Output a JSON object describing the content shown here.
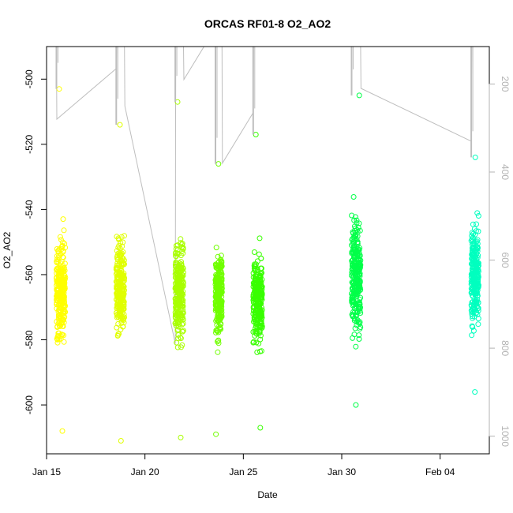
{
  "chart_data": {
    "type": "scatter",
    "title": "ORCAS RF01-8 O2_AO2",
    "xlabel": "Date",
    "ylabel": "O2_AO2",
    "xlim": [
      "2016-01-15T00:00",
      "2016-02-06T12:00"
    ],
    "ylim": [
      -615,
      -490
    ],
    "y2lim": [
      1040,
      115
    ],
    "x_ticks": [
      {
        "date": "2016-01-15",
        "label": "Jan 15"
      },
      {
        "date": "2016-01-20",
        "label": "Jan 20"
      },
      {
        "date": "2016-01-25",
        "label": "Jan 25"
      },
      {
        "date": "2016-01-30",
        "label": "Jan 30"
      },
      {
        "date": "2016-02-04",
        "label": "Feb 04"
      }
    ],
    "y_ticks": [
      -500,
      -520,
      -540,
      -560,
      -580,
      -600
    ],
    "y2_ticks": [
      200,
      400,
      600,
      800,
      1000
    ],
    "colors": {
      "line": "#bebebe",
      "axis": "#000000",
      "right_axis": "#b3b3b3"
    },
    "flights": [
      {
        "t0": "2016-01-15T12:00",
        "t1": "2016-01-15T23:00",
        "ymin": -608,
        "ymax": -503,
        "ymean": -565,
        "ysd": 12,
        "color": "#ffff00"
      },
      {
        "t0": "2016-01-18T13:00",
        "t1": "2016-01-18T23:00",
        "ymin": -611,
        "ymax": -514,
        "ymean": -565,
        "ysd": 11,
        "color": "#e0ff00"
      },
      {
        "t0": "2016-01-21T13:00",
        "t1": "2016-01-21T23:00",
        "ymin": -610,
        "ymax": -507,
        "ymean": -565,
        "ysd": 12,
        "color": "#a8ff00"
      },
      {
        "t0": "2016-01-23T14:00",
        "t1": "2016-01-23T22:00",
        "ymin": -609,
        "ymax": -526,
        "ymean": -565,
        "ysd": 10,
        "color": "#70ff00"
      },
      {
        "t0": "2016-01-25T12:00",
        "t1": "2016-01-25T23:00",
        "ymin": -607,
        "ymax": -517,
        "ymean": -568,
        "ysd": 12,
        "color": "#38ff00"
      },
      {
        "t0": "2016-01-30T12:00",
        "t1": "2016-01-30T23:00",
        "ymin": -600,
        "ymax": -505,
        "ymean": -560,
        "ysd": 14,
        "color": "#00ff48"
      },
      {
        "t0": "2016-02-05T14:00",
        "t1": "2016-02-05T23:00",
        "ymin": -596,
        "ymax": -524,
        "ymean": -560,
        "ysd": 12,
        "color": "#00ffbf"
      }
    ],
    "pressure_trace": [
      {
        "t": "2016-01-15T12:00",
        "p": 115
      },
      {
        "t": "2016-01-15T12:30",
        "p": 280
      },
      {
        "t": "2016-01-18T13:00",
        "p": 165
      },
      {
        "t": "2016-01-18T13:30",
        "p": 115
      },
      {
        "t": "2016-01-18T23:00",
        "p": 115
      },
      {
        "t": "2016-01-18T23:30",
        "p": 250
      },
      {
        "t": "2016-01-21T13:00",
        "p": 790
      },
      {
        "t": "2016-01-21T13:30",
        "p": 115
      },
      {
        "t": "2016-01-21T23:00",
        "p": 115
      },
      {
        "t": "2016-01-21T23:30",
        "p": 190
      },
      {
        "t": "2016-01-23T00:00",
        "p": 115
      },
      {
        "t": "2016-01-23T14:00",
        "p": 115
      },
      {
        "t": "2016-01-23T22:00",
        "p": 115
      },
      {
        "t": "2016-01-23T22:30",
        "p": 380
      },
      {
        "t": "2016-01-25T12:00",
        "p": 265
      },
      {
        "t": "2016-01-25T12:30",
        "p": 115
      },
      {
        "t": "2016-01-25T23:00",
        "p": 115
      },
      {
        "t": "2016-01-27T00:00",
        "p": 115
      },
      {
        "t": "2016-01-30T12:00",
        "p": 115
      },
      {
        "t": "2016-01-30T23:00",
        "p": 115
      },
      {
        "t": "2016-01-30T23:30",
        "p": 210
      },
      {
        "t": "2016-02-05T14:00",
        "p": 330
      },
      {
        "t": "2016-02-05T14:30",
        "p": 115
      },
      {
        "t": "2016-02-05T23:00",
        "p": 115
      }
    ]
  }
}
